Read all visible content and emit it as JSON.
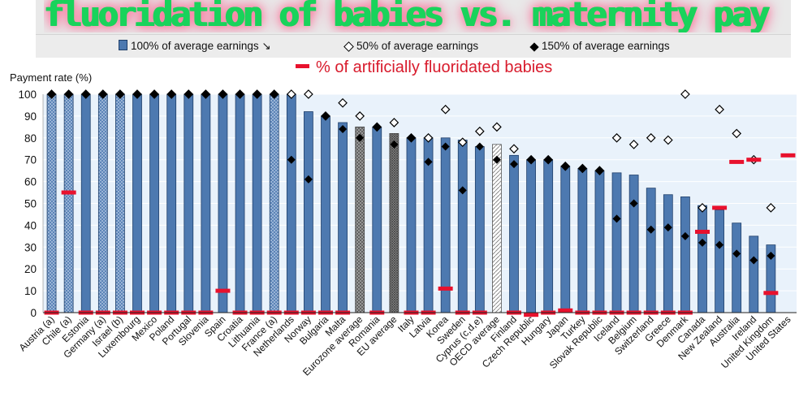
{
  "banner": {
    "title": "fluoridation of babies vs. maternity pay"
  },
  "legend": {
    "bar_label": "100% of average earnings",
    "bar_suffix": "↘",
    "open_label": "50% of average earnings",
    "filled_label": "150% of average earnings",
    "fluor_label": "% of artificially fluoridated babies"
  },
  "colors": {
    "bar": "#4d79b0",
    "bar_hatched_light": "#a9c0de",
    "eurozone_average": "#a6a6a6",
    "eu_average": "#9a9a9a",
    "oecd_average": "#ffffff",
    "fluor": "#e8112d",
    "plot_bg": "#e9f2fb"
  },
  "chart_data": {
    "type": "bar",
    "ylabel": "Payment rate (%)",
    "ylim": [
      0,
      100
    ],
    "yticks": [
      0,
      10,
      20,
      30,
      40,
      50,
      60,
      70,
      80,
      90,
      100
    ],
    "categories": [
      "Austria (a)",
      "Chile (a)",
      "Estonia",
      "Germany (a)",
      "Israel (b)",
      "Luxembourg",
      "Mexico",
      "Poland",
      "Portugal",
      "Slovenia",
      "Spain",
      "Croatia",
      "Lithuania",
      "France (a)",
      "Netherlands",
      "Norway",
      "Bulgaria",
      "Malta",
      "Eurozone average",
      "Romania",
      "EU average",
      "Italy",
      "Latvia",
      "Korea",
      "Sweden",
      "Cyprus (c,d,e)",
      "OECD average",
      "Finland",
      "Czech Republic",
      "Hungary",
      "Japan",
      "Turkey",
      "Slovak Republic",
      "Iceland",
      "Belgium",
      "Switzerland",
      "Greece",
      "Denmark",
      "Canada",
      "New Zealand",
      "Australia",
      "Ireland",
      "United Kingdom",
      "United States"
    ],
    "bar_styles": [
      "hatched",
      "hatched",
      "solid",
      "hatched",
      "hatched",
      "solid",
      "solid",
      "solid",
      "solid",
      "solid",
      "solid",
      "solid",
      "solid",
      "hatched",
      "solid",
      "solid",
      "solid",
      "solid",
      "eurozone",
      "solid",
      "eu",
      "solid",
      "solid",
      "solid",
      "solid",
      "solid",
      "oecd",
      "solid",
      "solid",
      "solid",
      "solid",
      "solid",
      "solid",
      "solid",
      "solid",
      "solid",
      "solid",
      "solid",
      "solid",
      "solid",
      "solid",
      "solid",
      "solid",
      "solid"
    ],
    "series": [
      {
        "name": "100% of average earnings",
        "values": [
          100,
          100,
          100,
          100,
          100,
          100,
          100,
          100,
          100,
          100,
          100,
          100,
          100,
          100,
          100,
          92,
          90,
          87,
          85,
          85,
          82,
          80,
          80,
          80,
          79,
          76,
          77,
          72,
          70,
          70,
          67,
          66,
          65,
          64,
          63,
          57,
          54,
          53,
          49,
          47,
          41,
          35,
          31,
          0
        ]
      },
      {
        "name": "50% of average earnings",
        "values": [
          100,
          100,
          100,
          100,
          100,
          100,
          100,
          100,
          100,
          100,
          100,
          100,
          100,
          100,
          100,
          100,
          90,
          96,
          90,
          85,
          87,
          80,
          80,
          93,
          78,
          83,
          85,
          75,
          70,
          70,
          67,
          66,
          65,
          80,
          77,
          80,
          79,
          100,
          48,
          93,
          82,
          70,
          48,
          null
        ]
      },
      {
        "name": "150% of average earnings",
        "values": [
          100,
          100,
          100,
          100,
          100,
          100,
          100,
          100,
          100,
          100,
          100,
          100,
          100,
          100,
          70,
          61,
          90,
          84,
          80,
          85,
          77,
          80,
          69,
          76,
          56,
          76,
          70,
          68,
          70,
          70,
          67,
          66,
          65,
          43,
          50,
          38,
          39,
          35,
          32,
          31,
          27,
          24,
          26,
          null
        ]
      },
      {
        "name": "% of artificially fluoridated babies",
        "values": [
          0,
          55,
          0,
          0,
          0,
          0,
          0,
          0,
          0,
          0,
          10,
          0,
          0,
          0,
          0,
          0,
          0,
          0,
          null,
          0,
          null,
          0,
          0,
          11,
          0,
          0,
          null,
          0,
          -1,
          0,
          1,
          0,
          0,
          0,
          0,
          0,
          0,
          0,
          37,
          48,
          69,
          70,
          9,
          72
        ]
      }
    ]
  }
}
